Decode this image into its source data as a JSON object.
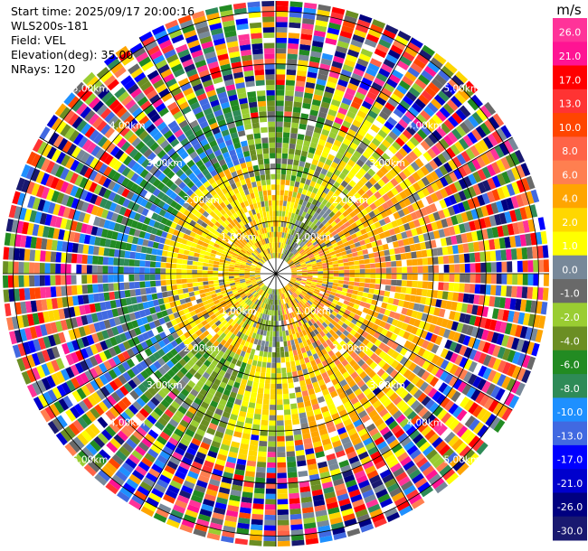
{
  "info": {
    "start_time": "Start time: 2025/09/17 20:00:16",
    "instrument": "WLS200s-181",
    "field": "Field: VEL",
    "elevation": "Elevation(deg): 35.00",
    "nrays": "NRays: 120"
  },
  "chart_data": {
    "type": "heatmap",
    "projection": "polar (PPI)",
    "field": "VEL",
    "units": "m/s",
    "range_ring_labels": [
      "1.00km",
      "2.00km",
      "3.00km",
      "4.00km",
      "5.00km"
    ],
    "colorbar": {
      "title": "m/s",
      "ticks": [
        "26.0",
        "21.0",
        "17.0",
        "13.0",
        "10.0",
        "8.0",
        "6.0",
        "4.0",
        "2.0",
        "1.0",
        "0.0",
        "-1.0",
        "-2.0",
        "-4.0",
        "-6.0",
        "-8.0",
        "-10.0",
        "-13.0",
        "-17.0",
        "-21.0",
        "-26.0",
        "-30.0"
      ],
      "colors": [
        "#ff3399",
        "#ff1493",
        "#ff0000",
        "#ff3333",
        "#ff4500",
        "#ff6347",
        "#ff7f50",
        "#ffa500",
        "#ffd700",
        "#ffff00",
        "#778899",
        "#696969",
        "#9acd32",
        "#6b8e23",
        "#228b22",
        "#2e8b57",
        "#1e90ff",
        "#4169e1",
        "#0000ff",
        "#0000cd",
        "#000080",
        "#191970"
      ]
    }
  }
}
